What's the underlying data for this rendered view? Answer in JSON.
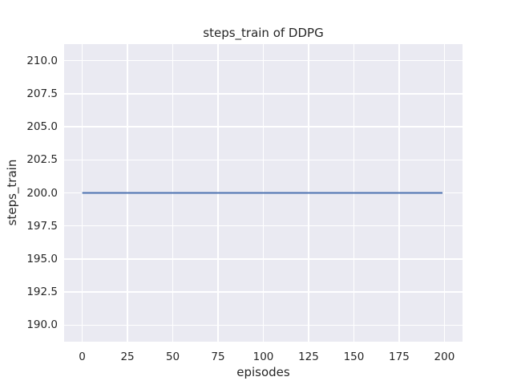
{
  "chart_data": {
    "type": "line",
    "title": "steps_train of DDPG",
    "xlabel": "episodes",
    "ylabel": "steps_train",
    "xlim": [
      -10,
      210
    ],
    "ylim": [
      188.75,
      211.25
    ],
    "grid": true,
    "legend": false,
    "xticks": {
      "values": [
        0,
        25,
        50,
        75,
        100,
        125,
        150,
        175,
        200
      ],
      "labels": [
        "0",
        "25",
        "50",
        "75",
        "100",
        "125",
        "150",
        "175",
        "200"
      ]
    },
    "yticks": {
      "values": [
        190.0,
        192.5,
        195.0,
        197.5,
        200.0,
        202.5,
        205.0,
        207.5,
        210.0
      ],
      "labels": [
        "190.0",
        "192.5",
        "195.0",
        "197.5",
        "200.0",
        "202.5",
        "205.0",
        "207.5",
        "210.0"
      ]
    },
    "series": [
      {
        "name": "steps_train",
        "x": [
          0,
          199
        ],
        "y": [
          200,
          200
        ]
      }
    ],
    "colors": {
      "line": "#4C72B0",
      "plot_background": "#EAEAF2",
      "grid": "#FFFFFF",
      "figure_background": "#FFFFFF",
      "text": "#262626"
    }
  }
}
